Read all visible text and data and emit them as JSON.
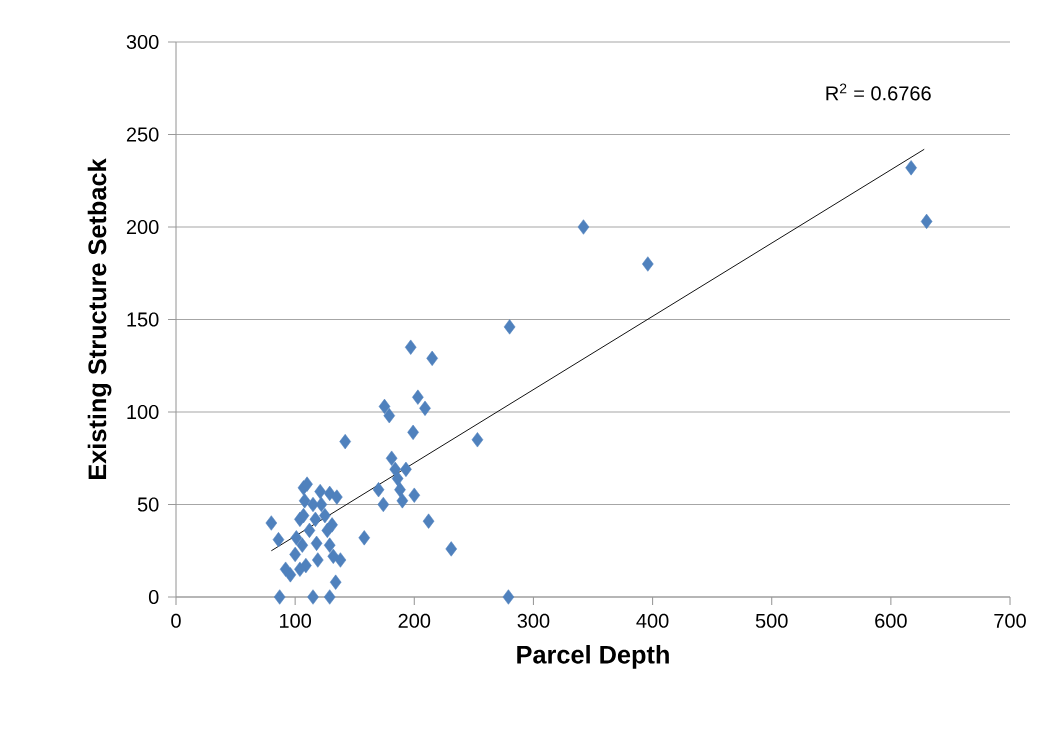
{
  "chart_data": {
    "type": "scatter",
    "xlabel": "Parcel Depth",
    "ylabel": "Existing Structure Setback",
    "xlim": [
      0,
      700
    ],
    "ylim": [
      0,
      300
    ],
    "xticks": [
      0,
      100,
      200,
      300,
      400,
      500,
      600,
      700
    ],
    "yticks": [
      0,
      50,
      100,
      150,
      200,
      250,
      300
    ],
    "grid": "y",
    "marker": "diamond",
    "annotations": [
      "R$^{2}$ = 0.6766"
    ],
    "series": [
      {
        "color": "#4f81bd",
        "x": [
          80,
          86,
          87,
          92,
          96,
          100,
          101,
          104,
          106,
          107,
          108,
          109,
          104,
          107,
          110,
          112,
          115,
          117,
          115,
          118,
          119,
          121,
          122,
          125,
          127,
          129,
          129,
          129,
          131,
          132,
          135,
          134,
          138,
          142,
          158,
          170,
          174,
          175,
          179,
          181,
          184,
          186,
          188,
          190,
          193,
          197,
          199,
          200,
          203,
          209,
          215,
          212,
          231,
          253,
          280,
          279,
          342,
          396,
          617,
          630
        ],
        "values": [
          40,
          31,
          0,
          15,
          12,
          23,
          32,
          42,
          28,
          44,
          52,
          17,
          15,
          59,
          61,
          36,
          50,
          42,
          0,
          29,
          20,
          57,
          50,
          44,
          36,
          28,
          0,
          56,
          39,
          22,
          54,
          8,
          20,
          84,
          32,
          58,
          50,
          103,
          98,
          75,
          69,
          64,
          58,
          52,
          69,
          135,
          89,
          55,
          108,
          102,
          129,
          41,
          26,
          85,
          146,
          0,
          200,
          180,
          232,
          203
        ]
      },
      {
        "type": "line",
        "marker": "none",
        "color": "#000000",
        "x": [
          80,
          628
        ],
        "values": [
          25,
          242
        ]
      }
    ]
  }
}
